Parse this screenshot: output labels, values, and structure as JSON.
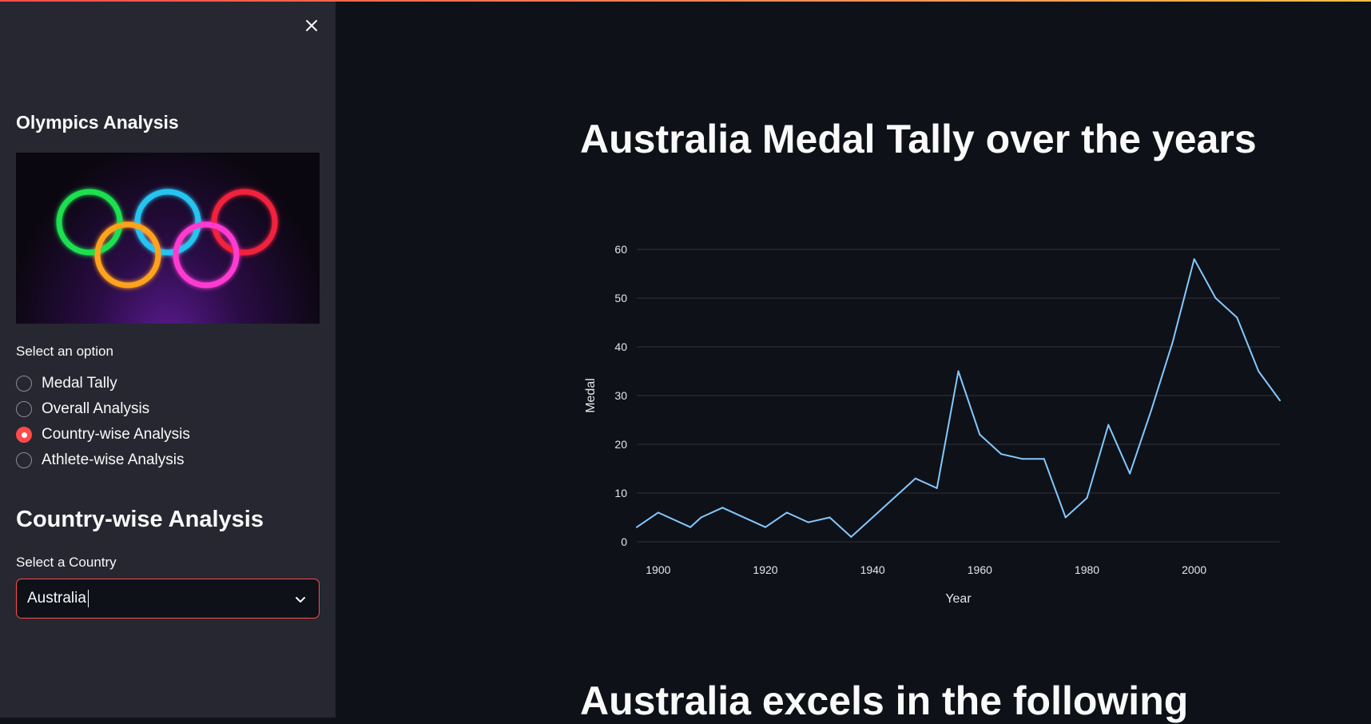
{
  "sidebar": {
    "title": "Olympics Analysis",
    "radio_label": "Select an option",
    "options": [
      "Medal Tally",
      "Overall Analysis",
      "Country-wise Analysis",
      "Athlete-wise Analysis"
    ],
    "selected_option": "Country-wise Analysis",
    "section_heading": "Country-wise Analysis",
    "select_label": "Select a Country",
    "select_value": "Australia"
  },
  "main": {
    "title": "Australia Medal Tally over the years",
    "subtitle": "Australia excels in the following"
  },
  "colors": {
    "accent": "#ff4b4b",
    "line": "#83c9ff",
    "background": "#0e1117",
    "sidebar": "#262730"
  },
  "chart_data": {
    "type": "line",
    "xlabel": "Year",
    "ylabel": "Medal",
    "x": [
      1896,
      1900,
      1906,
      1908,
      1912,
      1920,
      1924,
      1928,
      1932,
      1936,
      1948,
      1952,
      1956,
      1960,
      1964,
      1968,
      1972,
      1976,
      1980,
      1984,
      1988,
      1992,
      1996,
      2000,
      2004,
      2008,
      2012,
      2016
    ],
    "y": [
      3,
      6,
      3,
      5,
      7,
      3,
      6,
      4,
      5,
      1,
      13,
      11,
      35,
      22,
      18,
      17,
      17,
      5,
      9,
      24,
      14,
      27,
      41,
      58,
      50,
      46,
      35,
      29
    ],
    "xticks": [
      1900,
      1920,
      1940,
      1960,
      1980,
      2000
    ],
    "yticks": [
      0,
      10,
      20,
      30,
      40,
      50,
      60
    ],
    "xlim": [
      1896,
      2016
    ],
    "ylim": [
      0,
      60
    ],
    "grid": "horizontal"
  }
}
